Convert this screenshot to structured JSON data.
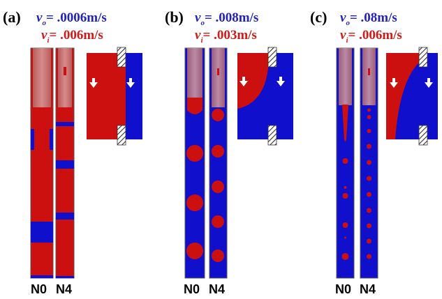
{
  "colors": {
    "outer_fluid": "#1010cc",
    "inner_fluid": "#cc1010",
    "nozzle": "#c07878",
    "label_outer": "#2323b8",
    "label_inner": "#d11a1a"
  },
  "panels": [
    {
      "id": "a",
      "label": "(a)",
      "v_outer": "= .0006m/s",
      "v_inner": "= .006m/s",
      "left_case": "N0",
      "right_case": "N4",
      "regime": "stratified-red-dominant"
    },
    {
      "id": "b",
      "label": "(b)",
      "v_outer": "= .008m/s",
      "v_inner": "= .003m/s",
      "left_case": "N0",
      "right_case": "N4",
      "regime": "large-droplets"
    },
    {
      "id": "c",
      "label": "(c)",
      "v_outer": "= .08m/s",
      "v_inner": "= .006m/s",
      "left_case": "N0",
      "right_case": "N4",
      "regime": "small-droplets"
    }
  ],
  "symbols": {
    "v": "v",
    "outer_sub": "o",
    "inner_sub": "i"
  }
}
